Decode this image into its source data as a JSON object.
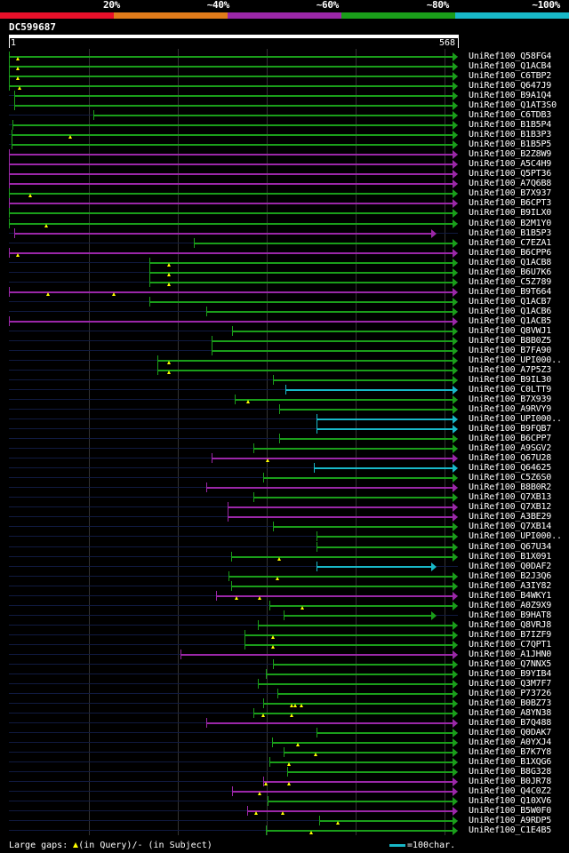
{
  "legend": {
    "segments": [
      {
        "label": "20%",
        "color": "#e8102a"
      },
      {
        "label": "~40%",
        "color": "#e07b1a"
      },
      {
        "label": "~60%",
        "color": "#9b27a8"
      },
      {
        "label": "~80%",
        "color": "#1a9e1a"
      },
      {
        "label": "~100%",
        "color": "#18b8c8"
      }
    ]
  },
  "query": {
    "id": "DC599687",
    "start": "1",
    "end": "568",
    "length": 568
  },
  "colors": {
    "green": "#1a9e1a",
    "purple": "#9b27a8",
    "cyan": "#18b8c8",
    "gap_triangle": "#ffff00"
  },
  "hits": [
    {
      "id": "UniRef100_Q58FG4",
      "start": 1,
      "end": 568,
      "color": "green",
      "arrow": true,
      "tris": [
        12
      ]
    },
    {
      "id": "UniRef100_Q1ACB4",
      "start": 1,
      "end": 568,
      "color": "green",
      "arrow": true,
      "tris": [
        12
      ]
    },
    {
      "id": "UniRef100_C6TBP2",
      "start": 1,
      "end": 568,
      "color": "green",
      "arrow": true,
      "tris": [
        12
      ]
    },
    {
      "id": "UniRef100_Q647J9",
      "start": 1,
      "end": 568,
      "color": "green",
      "arrow": true,
      "tris": [
        15
      ]
    },
    {
      "id": "UniRef100_B9A1Q4",
      "start": 8,
      "end": 568,
      "color": "green",
      "arrow": true,
      "tris": []
    },
    {
      "id": "UniRef100_Q1AT3S0",
      "start": 8,
      "end": 568,
      "color": "green",
      "arrow": true,
      "tris": []
    },
    {
      "id": "UniRef100_C6TDB3",
      "start": 108,
      "end": 568,
      "color": "green",
      "arrow": true,
      "tris": []
    },
    {
      "id": "UniRef100_B1B5P4",
      "start": 6,
      "end": 568,
      "color": "green",
      "arrow": true,
      "tris": []
    },
    {
      "id": "UniRef100_B1B3P3",
      "start": 4,
      "end": 568,
      "color": "green",
      "arrow": true,
      "tris": [
        78
      ]
    },
    {
      "id": "UniRef100_B1B5P5",
      "start": 4,
      "end": 568,
      "color": "green",
      "arrow": true,
      "tris": []
    },
    {
      "id": "UniRef100_B2Z8W9",
      "start": 1,
      "end": 568,
      "color": "purple",
      "arrow": true,
      "tris": []
    },
    {
      "id": "UniRef100_A5C4H9",
      "start": 1,
      "end": 568,
      "color": "purple",
      "arrow": true,
      "tris": []
    },
    {
      "id": "UniRef100_Q5PT36",
      "start": 1,
      "end": 568,
      "color": "purple",
      "arrow": true,
      "tris": []
    },
    {
      "id": "UniRef100_A7Q6B8",
      "start": 1,
      "end": 568,
      "color": "purple",
      "arrow": true,
      "tris": []
    },
    {
      "id": "UniRef100_B7X937",
      "start": 1,
      "end": 568,
      "color": "green",
      "arrow": true,
      "tris": [
        28
      ]
    },
    {
      "id": "UniRef100_B6CPT3",
      "start": 1,
      "end": 568,
      "color": "purple",
      "arrow": true,
      "tris": []
    },
    {
      "id": "UniRef100_B9ILX0",
      "start": 1,
      "end": 568,
      "color": "green",
      "arrow": true,
      "tris": []
    },
    {
      "id": "UniRef100_B2M1Y0",
      "start": 1,
      "end": 568,
      "color": "green",
      "arrow": true,
      "tris": [
        48
      ]
    },
    {
      "id": "UniRef100_B1B5P3",
      "start": 8,
      "end": 541,
      "color": "purple",
      "arrow": true,
      "tris": []
    },
    {
      "id": "UniRef100_C7EZA1",
      "start": 235,
      "end": 568,
      "color": "green",
      "arrow": true,
      "tris": []
    },
    {
      "id": "UniRef100_B6CPP6",
      "start": 1,
      "end": 568,
      "color": "purple",
      "arrow": true,
      "tris": [
        12
      ]
    },
    {
      "id": "UniRef100_Q1ACB8",
      "start": 178,
      "end": 568,
      "color": "green",
      "arrow": true,
      "tris": [
        203
      ]
    },
    {
      "id": "UniRef100_B6U7K6",
      "start": 178,
      "end": 568,
      "color": "green",
      "arrow": true,
      "tris": [
        203
      ]
    },
    {
      "id": "UniRef100_C5Z789",
      "start": 178,
      "end": 568,
      "color": "green",
      "arrow": true,
      "tris": [
        203
      ]
    },
    {
      "id": "UniRef100_B9T664",
      "start": 1,
      "end": 568,
      "color": "purple",
      "arrow": true,
      "tris": [
        50,
        133
      ]
    },
    {
      "id": "UniRef100_Q1ACB7",
      "start": 178,
      "end": 568,
      "color": "green",
      "arrow": true,
      "tris": []
    },
    {
      "id": "UniRef100_Q1ACB6",
      "start": 250,
      "end": 568,
      "color": "green",
      "arrow": true,
      "tris": []
    },
    {
      "id": "UniRef100_Q1ACB5",
      "start": 1,
      "end": 568,
      "color": "purple",
      "arrow": true,
      "tris": []
    },
    {
      "id": "UniRef100_Q8VWJ1",
      "start": 283,
      "end": 568,
      "color": "green",
      "arrow": true,
      "tris": []
    },
    {
      "id": "UniRef100_B8B0Z5",
      "start": 257,
      "end": 568,
      "color": "green",
      "arrow": true,
      "tris": []
    },
    {
      "id": "UniRef100_B7FA90",
      "start": 257,
      "end": 568,
      "color": "green",
      "arrow": true,
      "tris": []
    },
    {
      "id": "UniRef100_UPI000..",
      "start": 188,
      "end": 568,
      "color": "green",
      "arrow": true,
      "tris": [
        203
      ]
    },
    {
      "id": "UniRef100_A7P5Z3",
      "start": 188,
      "end": 568,
      "color": "green",
      "arrow": true,
      "tris": [
        203
      ]
    },
    {
      "id": "UniRef100_B9IL30",
      "start": 335,
      "end": 568,
      "color": "green",
      "arrow": true,
      "tris": []
    },
    {
      "id": "UniRef100_C0LTT9",
      "start": 350,
      "end": 568,
      "color": "cyan",
      "arrow": true,
      "tris": []
    },
    {
      "id": "UniRef100_B7X939",
      "start": 286,
      "end": 568,
      "color": "green",
      "arrow": true,
      "tris": [
        303
      ]
    },
    {
      "id": "UniRef100_A9RVY9",
      "start": 342,
      "end": 568,
      "color": "green",
      "arrow": true,
      "tris": []
    },
    {
      "id": "UniRef100_UPI000..",
      "start": 390,
      "end": 568,
      "color": "cyan",
      "arrow": true,
      "tris": []
    },
    {
      "id": "UniRef100_B9FQB7",
      "start": 390,
      "end": 568,
      "color": "cyan",
      "arrow": true,
      "tris": []
    },
    {
      "id": "UniRef100_B6CPP7",
      "start": 342,
      "end": 568,
      "color": "green",
      "arrow": true,
      "tris": []
    },
    {
      "id": "UniRef100_A9SGV2",
      "start": 310,
      "end": 568,
      "color": "green",
      "arrow": true,
      "tris": []
    },
    {
      "id": "UniRef100_Q67U28",
      "start": 257,
      "end": 568,
      "color": "purple",
      "arrow": true,
      "tris": [
        328
      ]
    },
    {
      "id": "UniRef100_Q64625",
      "start": 386,
      "end": 568,
      "color": "cyan",
      "arrow": true,
      "tris": []
    },
    {
      "id": "UniRef100_C5Z6S0",
      "start": 322,
      "end": 568,
      "color": "green",
      "arrow": true,
      "tris": []
    },
    {
      "id": "UniRef100_B8B0R2",
      "start": 250,
      "end": 568,
      "color": "purple",
      "arrow": true,
      "tris": []
    },
    {
      "id": "UniRef100_Q7XB13",
      "start": 310,
      "end": 568,
      "color": "green",
      "arrow": true,
      "tris": []
    },
    {
      "id": "UniRef100_Q7XB12",
      "start": 277,
      "end": 568,
      "color": "purple",
      "arrow": true,
      "tris": []
    },
    {
      "id": "UniRef100_A3BE29",
      "start": 277,
      "end": 568,
      "color": "purple",
      "arrow": true,
      "tris": []
    },
    {
      "id": "UniRef100_Q7XB14",
      "start": 335,
      "end": 568,
      "color": "green",
      "arrow": true,
      "tris": []
    },
    {
      "id": "UniRef100_UPI000..",
      "start": 390,
      "end": 568,
      "color": "green",
      "arrow": true,
      "tris": []
    },
    {
      "id": "UniRef100_Q67U34",
      "start": 390,
      "end": 568,
      "color": "green",
      "arrow": true,
      "tris": []
    },
    {
      "id": "UniRef100_B1X091",
      "start": 282,
      "end": 568,
      "color": "green",
      "arrow": true,
      "tris": [
        342
      ]
    },
    {
      "id": "UniRef100_Q0DAF2",
      "start": 390,
      "end": 541,
      "color": "cyan",
      "arrow": true,
      "tris": []
    },
    {
      "id": "UniRef100_B2J3Q6",
      "start": 278,
      "end": 568,
      "color": "green",
      "arrow": true,
      "tris": [
        340
      ]
    },
    {
      "id": "UniRef100_A3IY82",
      "start": 282,
      "end": 568,
      "color": "green",
      "arrow": true,
      "tris": []
    },
    {
      "id": "UniRef100_B4WKY1",
      "start": 263,
      "end": 568,
      "color": "purple",
      "arrow": true,
      "tris": [
        288,
        318
      ]
    },
    {
      "id": "UniRef100_A0Z9X9",
      "start": 330,
      "end": 568,
      "color": "green",
      "arrow": true,
      "tris": [
        372
      ]
    },
    {
      "id": "UniRef100_B9HAT8",
      "start": 348,
      "end": 541,
      "color": "green",
      "arrow": true,
      "tris": []
    },
    {
      "id": "UniRef100_Q8VRJ8",
      "start": 315,
      "end": 568,
      "color": "green",
      "arrow": true,
      "tris": []
    },
    {
      "id": "UniRef100_B7IZF9",
      "start": 298,
      "end": 568,
      "color": "green",
      "arrow": true,
      "tris": [
        335
      ]
    },
    {
      "id": "UniRef100_C7QPT1",
      "start": 298,
      "end": 568,
      "color": "green",
      "arrow": true,
      "tris": [
        335
      ]
    },
    {
      "id": "UniRef100_A1JHN0",
      "start": 218,
      "end": 568,
      "color": "purple",
      "arrow": true,
      "tris": []
    },
    {
      "id": "UniRef100_Q7NNX5",
      "start": 335,
      "end": 568,
      "color": "green",
      "arrow": true,
      "tris": []
    },
    {
      "id": "UniRef100_B9YIB4",
      "start": 325,
      "end": 568,
      "color": "green",
      "arrow": true,
      "tris": []
    },
    {
      "id": "UniRef100_Q3M7F7",
      "start": 315,
      "end": 568,
      "color": "green",
      "arrow": true,
      "tris": []
    },
    {
      "id": "UniRef100_P73726",
      "start": 340,
      "end": 568,
      "color": "green",
      "arrow": true,
      "tris": []
    },
    {
      "id": "UniRef100_B0BZ73",
      "start": 322,
      "end": 568,
      "color": "green",
      "arrow": true,
      "tris": [
        358,
        362,
        370
      ]
    },
    {
      "id": "UniRef100_A8YN38",
      "start": 310,
      "end": 568,
      "color": "green",
      "arrow": true,
      "tris": [
        322,
        358
      ]
    },
    {
      "id": "UniRef100_B7Q488",
      "start": 250,
      "end": 568,
      "color": "purple",
      "arrow": true,
      "tris": []
    },
    {
      "id": "UniRef100_Q0DAK7",
      "start": 390,
      "end": 568,
      "color": "green",
      "arrow": true,
      "tris": []
    },
    {
      "id": "UniRef100_A0YXJ4",
      "start": 333,
      "end": 568,
      "color": "green",
      "arrow": true,
      "tris": [
        366
      ]
    },
    {
      "id": "UniRef100_B7K7Y8",
      "start": 348,
      "end": 568,
      "color": "green",
      "arrow": true,
      "tris": [
        388
      ]
    },
    {
      "id": "UniRef100_B1XQG6",
      "start": 330,
      "end": 568,
      "color": "green",
      "arrow": true,
      "tris": [
        355
      ]
    },
    {
      "id": "UniRef100_B8G328",
      "start": 352,
      "end": 568,
      "color": "green",
      "arrow": true,
      "tris": []
    },
    {
      "id": "UniRef100_B0JR78",
      "start": 322,
      "end": 568,
      "color": "purple",
      "arrow": true,
      "tris": [
        325,
        355
      ]
    },
    {
      "id": "UniRef100_Q4C0Z2",
      "start": 283,
      "end": 568,
      "color": "purple",
      "arrow": true,
      "tris": [
        318
      ]
    },
    {
      "id": "UniRef100_Q10XV6",
      "start": 328,
      "end": 568,
      "color": "green",
      "arrow": true,
      "tris": []
    },
    {
      "id": "UniRef100_B5W0F0",
      "start": 302,
      "end": 568,
      "color": "purple",
      "arrow": true,
      "tris": [
        313,
        347
      ]
    },
    {
      "id": "UniRef100_A9RDP5",
      "start": 393,
      "end": 568,
      "color": "green",
      "arrow": true,
      "tris": [
        416
      ]
    },
    {
      "id": "UniRef100_C1E4B5",
      "start": 326,
      "end": 568,
      "color": "green",
      "arrow": true,
      "tris": [
        383
      ]
    }
  ],
  "footer": {
    "text_before": "Large gaps: ",
    "text_after": "(in Query)/- (in Subject)",
    "scale_label": "=100char.",
    "scale_color": "#18b8c8"
  }
}
